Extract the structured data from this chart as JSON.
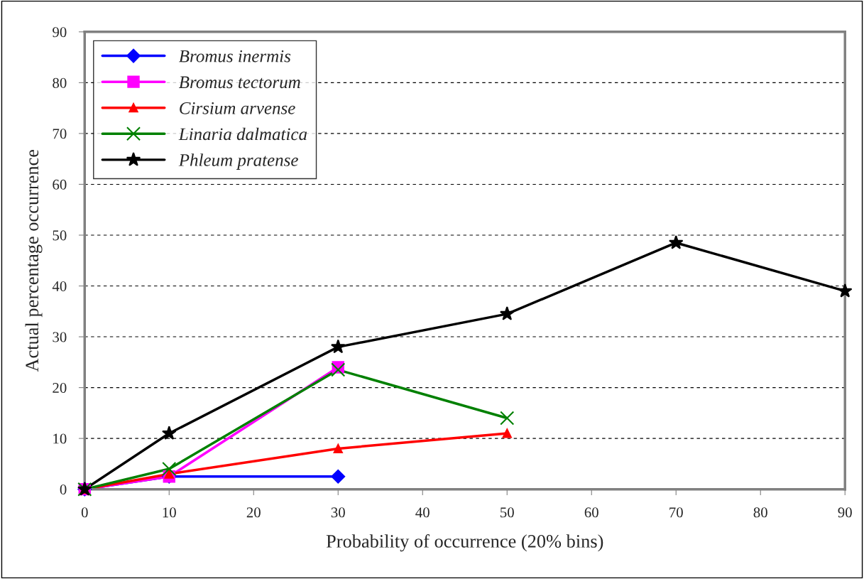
{
  "chart_data": {
    "type": "line",
    "xlabel": "Probability of occurrence (20% bins)",
    "ylabel": "Actual percentage occurrence",
    "xlim": [
      0,
      90
    ],
    "ylim": [
      0,
      90
    ],
    "xticks": [
      0,
      10,
      20,
      30,
      40,
      50,
      60,
      70,
      80,
      90
    ],
    "yticks": [
      0,
      10,
      20,
      30,
      40,
      50,
      60,
      70,
      80,
      90
    ],
    "grid": "y",
    "legend": "top left",
    "line_style": "solid",
    "series": [
      {
        "name": "Bromus inermis",
        "color": "#0000ff",
        "marker": "diamond",
        "x": [
          0,
          10,
          30
        ],
        "values": [
          0,
          2.5,
          2.5
        ]
      },
      {
        "name": "Bromus tectorum",
        "color": "#ff00ff",
        "marker": "square",
        "x": [
          0,
          10,
          30
        ],
        "values": [
          0,
          2.5,
          24
        ]
      },
      {
        "name": "Cirsium arvense",
        "color": "#ff0000",
        "marker": "triangle",
        "x": [
          0,
          10,
          30,
          50
        ],
        "values": [
          0,
          3,
          8,
          11
        ]
      },
      {
        "name": "Linaria dalmatica",
        "color": "#008000",
        "marker": "cross",
        "x": [
          0,
          10,
          30,
          50
        ],
        "values": [
          0,
          4,
          23.5,
          14
        ]
      },
      {
        "name": "Phleum pratense",
        "color": "#000000",
        "marker": "star",
        "x": [
          0,
          10,
          30,
          50,
          70,
          90
        ],
        "values": [
          0,
          11,
          28,
          34.5,
          48.5,
          39
        ]
      }
    ]
  }
}
